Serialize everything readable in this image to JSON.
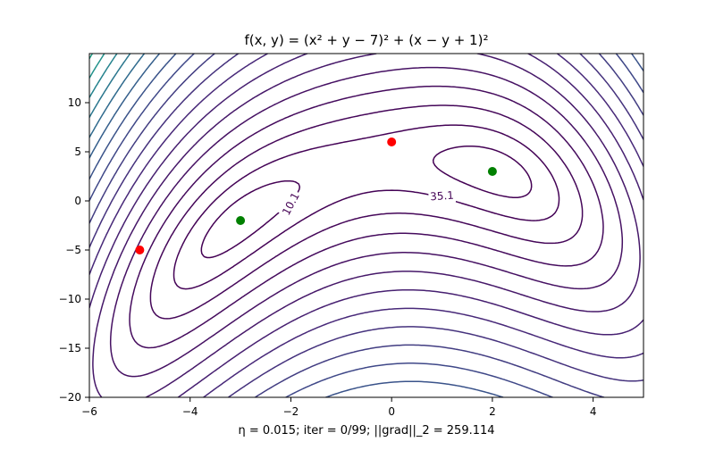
{
  "chart_data": {
    "type": "contour",
    "title": "f(x, y) = (x² + y − 7)² + (x − y + 1)²",
    "xlabel": "η =  0.015; iter = 0/99; ||grad||_2 = 259.114",
    "ylabel": "",
    "xlim": [
      -6,
      5
    ],
    "ylim": [
      -20,
      15
    ],
    "xticks": [
      -6,
      -4,
      -2,
      0,
      2,
      4
    ],
    "yticks": [
      -20,
      -15,
      -10,
      -5,
      0,
      5,
      10
    ],
    "x_tick_labels": [
      "−6",
      "−4",
      "−2",
      "0",
      "2",
      "4"
    ],
    "y_tick_labels": [
      "−20",
      "−15",
      "−10",
      "−5",
      "0",
      "5",
      "10"
    ],
    "grid": false,
    "colormap": "viridis",
    "contour_levels": [
      10.1,
      35.1,
      73.6,
      125.6,
      191.1,
      270.1,
      362.6,
      468.6,
      588.1,
      721.1,
      867.6,
      1027.6,
      1201.1,
      1388.1,
      1588.6,
      1802.6,
      2030.1,
      2271.1,
      2525.6,
      2793.6,
      3075.1,
      3370.1,
      3678.6,
      4000.6
    ],
    "contour_labels": [
      "10.1",
      "35.1"
    ],
    "minima": [
      {
        "x": -3,
        "y": -2
      },
      {
        "x": 2,
        "y": 3
      }
    ],
    "minima_color": "#008000",
    "points": [
      {
        "x": 0,
        "y": 6
      },
      {
        "x": -5,
        "y": -5
      }
    ],
    "points_color": "#ff0000"
  }
}
